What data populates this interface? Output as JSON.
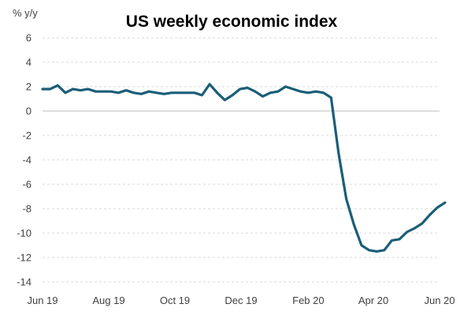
{
  "chart_data": {
    "type": "line",
    "title": "US weekly economic index",
    "ylabel": "% y/y",
    "xlabel": "",
    "ylim": [
      -14,
      6
    ],
    "yticks": [
      6,
      4,
      2,
      0,
      -2,
      -4,
      -6,
      -8,
      -10,
      -12,
      -14
    ],
    "grid": true,
    "line_color": "#1a5e78",
    "x_tick_labels": [
      {
        "label": "Jun 19",
        "date": "2019-06-01"
      },
      {
        "label": "Aug 19",
        "date": "2019-08-01"
      },
      {
        "label": "Oct 19",
        "date": "2019-10-01"
      },
      {
        "label": "Dec 19",
        "date": "2019-12-01"
      },
      {
        "label": "Feb 20",
        "date": "2020-02-01"
      },
      {
        "label": "Apr 20",
        "date": "2020-04-01"
      },
      {
        "label": "Jun 20",
        "date": "2020-06-01"
      }
    ],
    "series": [
      {
        "values": [
          {
            "x": "2019-06-01",
            "y": 1.8
          },
          {
            "x": "2019-06-08",
            "y": 1.8
          },
          {
            "x": "2019-06-15",
            "y": 2.1
          },
          {
            "x": "2019-06-22",
            "y": 1.5
          },
          {
            "x": "2019-06-29",
            "y": 1.8
          },
          {
            "x": "2019-07-06",
            "y": 1.7
          },
          {
            "x": "2019-07-13",
            "y": 1.8
          },
          {
            "x": "2019-07-20",
            "y": 1.6
          },
          {
            "x": "2019-07-27",
            "y": 1.6
          },
          {
            "x": "2019-08-03",
            "y": 1.6
          },
          {
            "x": "2019-08-10",
            "y": 1.5
          },
          {
            "x": "2019-08-17",
            "y": 1.7
          },
          {
            "x": "2019-08-24",
            "y": 1.5
          },
          {
            "x": "2019-08-31",
            "y": 1.4
          },
          {
            "x": "2019-09-07",
            "y": 1.6
          },
          {
            "x": "2019-09-14",
            "y": 1.5
          },
          {
            "x": "2019-09-21",
            "y": 1.4
          },
          {
            "x": "2019-09-28",
            "y": 1.5
          },
          {
            "x": "2019-10-05",
            "y": 1.5
          },
          {
            "x": "2019-10-12",
            "y": 1.5
          },
          {
            "x": "2019-10-19",
            "y": 1.5
          },
          {
            "x": "2019-10-26",
            "y": 1.3
          },
          {
            "x": "2019-11-02",
            "y": 2.2
          },
          {
            "x": "2019-11-09",
            "y": 1.5
          },
          {
            "x": "2019-11-16",
            "y": 0.9
          },
          {
            "x": "2019-11-23",
            "y": 1.3
          },
          {
            "x": "2019-11-30",
            "y": 1.8
          },
          {
            "x": "2019-12-07",
            "y": 1.9
          },
          {
            "x": "2019-12-14",
            "y": 1.6
          },
          {
            "x": "2019-12-21",
            "y": 1.2
          },
          {
            "x": "2019-12-28",
            "y": 1.5
          },
          {
            "x": "2020-01-04",
            "y": 1.6
          },
          {
            "x": "2020-01-11",
            "y": 2.0
          },
          {
            "x": "2020-01-18",
            "y": 1.8
          },
          {
            "x": "2020-01-25",
            "y": 1.6
          },
          {
            "x": "2020-02-01",
            "y": 1.5
          },
          {
            "x": "2020-02-08",
            "y": 1.6
          },
          {
            "x": "2020-02-15",
            "y": 1.5
          },
          {
            "x": "2020-02-22",
            "y": 1.1
          },
          {
            "x": "2020-02-29",
            "y": -3.5
          },
          {
            "x": "2020-03-07",
            "y": -7.2
          },
          {
            "x": "2020-03-14",
            "y": -9.3
          },
          {
            "x": "2020-03-21",
            "y": -11.0
          },
          {
            "x": "2020-03-28",
            "y": -11.4
          },
          {
            "x": "2020-04-04",
            "y": -11.5
          },
          {
            "x": "2020-04-11",
            "y": -11.4
          },
          {
            "x": "2020-04-18",
            "y": -10.6
          },
          {
            "x": "2020-04-25",
            "y": -10.5
          },
          {
            "x": "2020-05-02",
            "y": -9.9
          },
          {
            "x": "2020-05-09",
            "y": -9.6
          },
          {
            "x": "2020-05-16",
            "y": -9.2
          },
          {
            "x": "2020-05-23",
            "y": -8.5
          },
          {
            "x": "2020-05-30",
            "y": -7.9
          },
          {
            "x": "2020-06-06",
            "y": -7.5
          }
        ]
      }
    ]
  }
}
